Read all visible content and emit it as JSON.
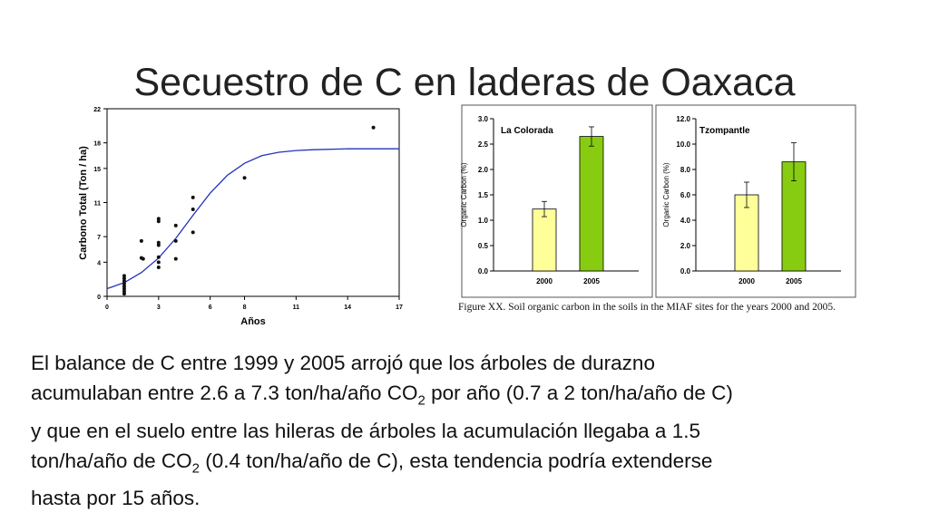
{
  "title": "Secuestro de C en laderas de Oaxaca",
  "caption": "Figure XX. Soil organic carbon in the soils in the MIAF sites for the years 2000 and 2005.",
  "body": {
    "line1": "El balance de C entre 1999 y 2005 arrojó que los árboles de durazno",
    "line2a": "acumulaban entre 2.6 a 7.3 ton/ha/año CO",
    "line2b": " por año (0.7 a 2 ton/ha/año de C)",
    "line3": "y que en el suelo entre las hileras de árboles la acumulación llegaba a 1.5",
    "line4a": "ton/ha/año de CO",
    "line4b": " (0.4 ton/ha/año de C), esta tendencia podría extenderse",
    "line5": "hasta por 15 años.",
    "sub2": "2"
  },
  "colors": {
    "curve": "#2233bb",
    "bar2000": "#ffff99",
    "bar2005": "#88cc11",
    "points": "#111111"
  },
  "chart_data": [
    {
      "type": "scatter",
      "xlabel": "Años",
      "ylabel": "Carbono Total (Ton / ha)",
      "xlim": [
        0,
        17
      ],
      "ylim": [
        0,
        22
      ],
      "xticks": [
        "0",
        "3",
        "6",
        "8",
        "11",
        "14",
        "17"
      ],
      "yticks": [
        "0",
        "4",
        "7",
        "11",
        "15",
        "18",
        "22"
      ],
      "grid": false,
      "points": [
        [
          1,
          0.3
        ],
        [
          1,
          0.6
        ],
        [
          1,
          0.9
        ],
        [
          1,
          1.2
        ],
        [
          1,
          1.5
        ],
        [
          1,
          1.8
        ],
        [
          1,
          2.1
        ],
        [
          1,
          2.4
        ],
        [
          2,
          4.5
        ],
        [
          2,
          6.5
        ],
        [
          2.1,
          4.4
        ],
        [
          3,
          3.4
        ],
        [
          3,
          4.0
        ],
        [
          3,
          4.6
        ],
        [
          3,
          6.0
        ],
        [
          3,
          6.3
        ],
        [
          3,
          8.8
        ],
        [
          3,
          9.1
        ],
        [
          4,
          4.4
        ],
        [
          4,
          6.5
        ],
        [
          4,
          8.3
        ],
        [
          5,
          7.5
        ],
        [
          5,
          10.2
        ],
        [
          5,
          11.6
        ],
        [
          8,
          13.9
        ],
        [
          15.5,
          19.8
        ]
      ],
      "fit_curve": "sigmoid",
      "fit_points": [
        [
          0,
          0.9
        ],
        [
          1,
          1.6
        ],
        [
          2,
          2.8
        ],
        [
          3,
          4.5
        ],
        [
          4,
          6.8
        ],
        [
          5,
          9.5
        ],
        [
          6,
          12.1
        ],
        [
          7,
          14.2
        ],
        [
          8,
          15.6
        ],
        [
          9,
          16.5
        ],
        [
          10,
          16.9
        ],
        [
          11,
          17.1
        ],
        [
          12,
          17.2
        ],
        [
          14,
          17.3
        ],
        [
          17,
          17.3
        ]
      ]
    },
    {
      "type": "bar",
      "title": "La Colorada",
      "categories": [
        "2000",
        "2005"
      ],
      "values": [
        1.22,
        2.65
      ],
      "errors": [
        0.15,
        0.19
      ],
      "ylabel": "Organic Carbon (%)",
      "ylim": [
        0,
        3.0
      ],
      "yticks": [
        "0.0",
        "0.5",
        "1.0",
        "1.5",
        "2.0",
        "2.5",
        "3.0"
      ]
    },
    {
      "type": "bar",
      "title": "Tzompantle",
      "categories": [
        "2000",
        "2005"
      ],
      "values": [
        6.0,
        8.6
      ],
      "errors": [
        1.0,
        1.5
      ],
      "ylabel": "Organic Carbon (%)",
      "ylim": [
        0,
        12.0
      ],
      "yticks": [
        "0.0",
        "2.0",
        "4.0",
        "6.0",
        "8.0",
        "10.0",
        "12.0"
      ]
    }
  ]
}
